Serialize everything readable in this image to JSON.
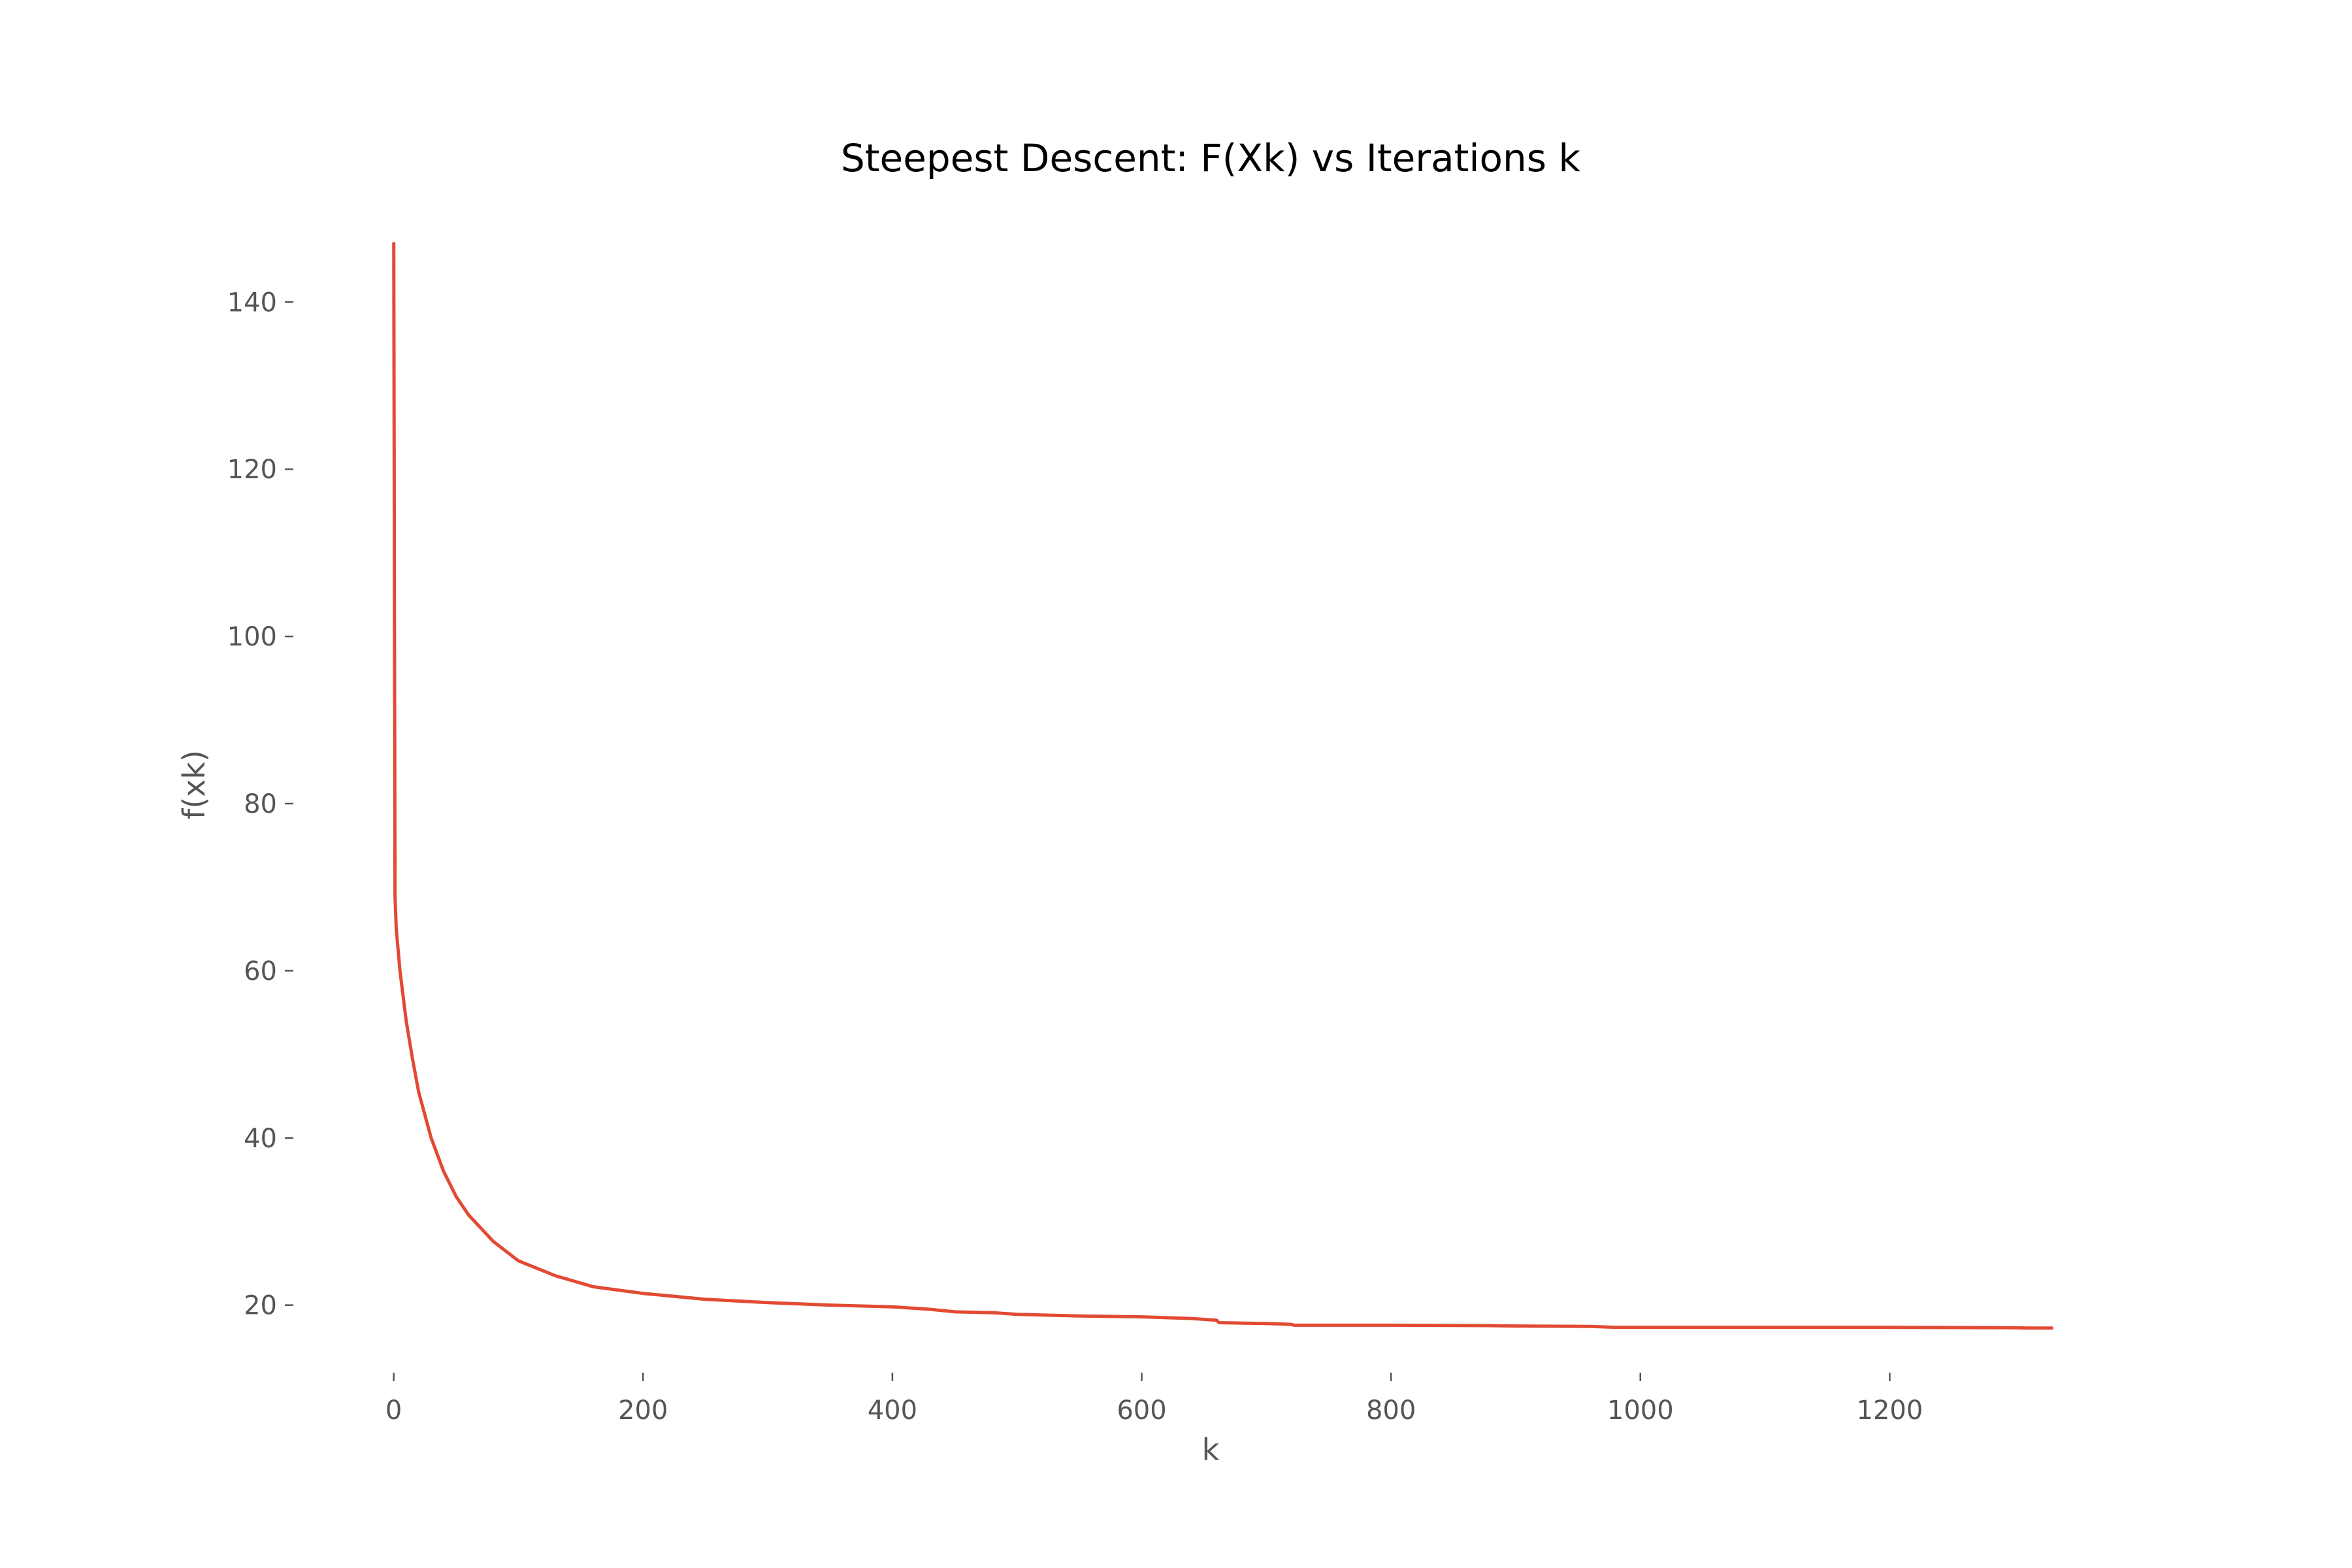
{
  "chart_data": {
    "type": "line",
    "title": "Steepest Descent: F(Xk) vs Iterations k",
    "xlabel": "k",
    "ylabel": "f(xk)",
    "xlim": [
      -80,
      1335
    ],
    "ylim": [
      12,
      148
    ],
    "xticks": [
      0,
      200,
      400,
      600,
      800,
      1000,
      1200
    ],
    "yticks": [
      20,
      40,
      60,
      80,
      100,
      120,
      140
    ],
    "grid": false,
    "line_color": "#E24A33",
    "series": [
      {
        "x": [
          0,
          1,
          2,
          5,
          10,
          15,
          20,
          30,
          40,
          50,
          60,
          80,
          100,
          130,
          160,
          200,
          250,
          300,
          350,
          400,
          430,
          450,
          480,
          500,
          550,
          600,
          640,
          660,
          662,
          700,
          720,
          722,
          800,
          880,
          900,
          960,
          980,
          1000,
          1100,
          1200,
          1300,
          1310,
          1330
        ],
        "y": [
          147,
          69,
          65,
          60,
          54,
          49.5,
          45.5,
          40,
          36,
          33,
          30.8,
          27.6,
          25.3,
          23.5,
          22.2,
          21.4,
          20.7,
          20.3,
          20.0,
          19.8,
          19.5,
          19.2,
          19.1,
          18.9,
          18.7,
          18.6,
          18.4,
          18.2,
          17.9,
          17.8,
          17.7,
          17.6,
          17.6,
          17.55,
          17.5,
          17.45,
          17.35,
          17.35,
          17.35,
          17.35,
          17.3,
          17.25,
          17.25
        ]
      }
    ]
  }
}
